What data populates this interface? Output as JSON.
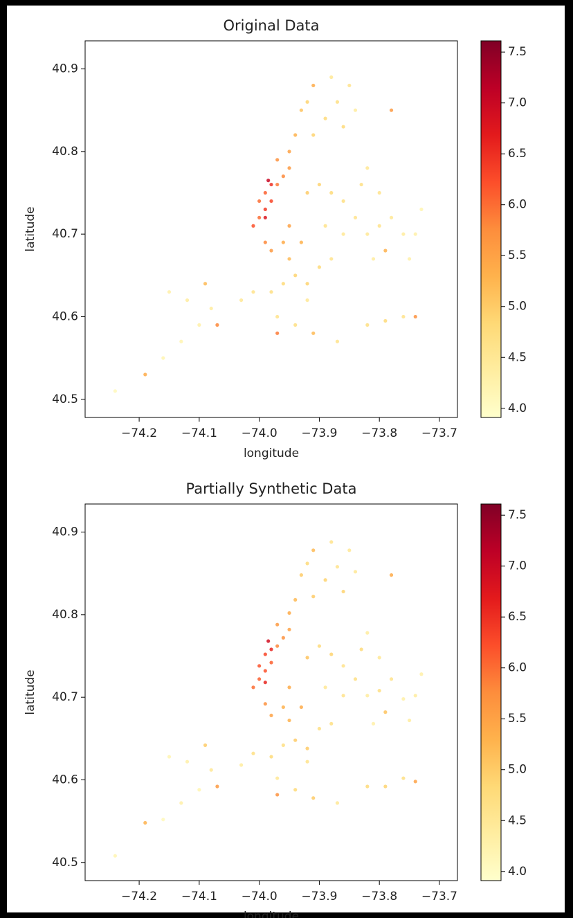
{
  "chart_data": [
    {
      "type": "scatter",
      "title": "Original Data",
      "xlabel": "longitude",
      "ylabel": "latitude",
      "xlim": [
        -74.29,
        -73.67
      ],
      "ylim": [
        40.478,
        40.934
      ],
      "xticks": [
        {
          "value": -74.2,
          "label": "−74.2"
        },
        {
          "value": -74.1,
          "label": "−74.1"
        },
        {
          "value": -74.0,
          "label": "−74.0"
        },
        {
          "value": -73.9,
          "label": "−73.9"
        },
        {
          "value": -73.8,
          "label": "−73.8"
        },
        {
          "value": -73.7,
          "label": "−73.7"
        }
      ],
      "yticks": [
        40.5,
        40.6,
        40.7,
        40.8,
        40.9
      ],
      "colormap": "YlOrRd",
      "clim": [
        3.91,
        7.61
      ],
      "cticks": [
        {
          "value": 4,
          "label": "4.0"
        },
        4.5,
        {
          "value": 5,
          "label": "5.0"
        },
        5.5,
        {
          "value": 6,
          "label": "6.0"
        },
        6.5,
        {
          "value": 7,
          "label": "7.0"
        },
        7.5
      ],
      "series": [
        {
          "x": [
            -74.01,
            -74.0,
            -73.99,
            -73.99,
            -73.98,
            -73.97,
            -73.98,
            -73.96,
            -73.95,
            -73.97,
            -73.95,
            -73.94,
            -73.93,
            -73.92,
            -74.0,
            -73.99,
            -73.985,
            -73.99,
            -73.98,
            -73.96,
            -73.95,
            -73.94,
            -73.96,
            -73.98,
            -74.01,
            -74.03,
            -73.92,
            -73.9,
            -73.93,
            -73.95,
            -73.97,
            -73.94,
            -73.92,
            -73.88,
            -73.97,
            -73.91,
            -73.92,
            -73.9,
            -73.88,
            -73.86,
            -73.84,
            -73.82,
            -73.8,
            -73.78,
            -73.76,
            -73.74,
            -73.8,
            -73.83,
            -73.86,
            -73.89,
            -73.79,
            -73.81,
            -73.75,
            -73.73,
            -73.82,
            -73.91,
            -73.89,
            -73.87,
            -73.85,
            -73.88,
            -73.91,
            -73.86,
            -73.84,
            -73.78,
            -74.15,
            -74.12,
            -74.09,
            -74.08,
            -74.1,
            -74.13,
            -74.16,
            -74.19,
            -74.24,
            -74.07,
            -73.82,
            -73.79,
            -73.76,
            -73.74,
            -73.87
          ],
          "y": [
            40.71,
            40.72,
            40.73,
            40.75,
            40.76,
            40.76,
            40.74,
            40.77,
            40.78,
            40.79,
            40.8,
            40.82,
            40.85,
            40.86,
            40.74,
            40.72,
            40.765,
            40.69,
            40.68,
            40.69,
            40.67,
            40.65,
            40.64,
            40.63,
            40.63,
            40.62,
            40.64,
            40.66,
            40.69,
            40.71,
            40.6,
            40.59,
            40.62,
            40.67,
            40.58,
            40.58,
            40.75,
            40.76,
            40.75,
            40.74,
            40.72,
            40.7,
            40.71,
            40.72,
            40.7,
            40.7,
            40.75,
            40.76,
            40.7,
            40.71,
            40.68,
            40.67,
            40.67,
            40.73,
            40.78,
            40.82,
            40.84,
            40.86,
            40.88,
            40.89,
            40.88,
            40.83,
            40.85,
            40.85,
            40.63,
            40.62,
            40.64,
            40.61,
            40.59,
            40.57,
            40.55,
            40.53,
            40.51,
            40.59,
            40.59,
            40.595,
            40.6,
            40.6,
            40.57
          ],
          "values": [
            6.2,
            6.0,
            6.4,
            6.1,
            6.5,
            5.9,
            6.3,
            5.8,
            5.6,
            5.7,
            5.5,
            5.3,
            5.1,
            4.9,
            6.0,
            6.8,
            7.0,
            5.8,
            5.6,
            5.4,
            5.2,
            4.9,
            4.8,
            4.7,
            4.6,
            4.5,
            4.9,
            4.8,
            5.3,
            5.5,
            4.6,
            4.7,
            4.5,
            4.6,
            5.9,
            5.2,
            5.0,
            4.9,
            4.8,
            4.7,
            4.6,
            4.5,
            4.6,
            4.5,
            4.4,
            4.3,
            4.6,
            4.7,
            4.5,
            4.6,
            5.3,
            4.4,
            4.3,
            4.2,
            4.5,
            4.9,
            4.8,
            4.7,
            4.6,
            4.5,
            5.4,
            4.8,
            4.4,
            5.6,
            4.3,
            4.4,
            5.2,
            4.4,
            4.3,
            4.2,
            4.2,
            5.4,
            4.1,
            5.8,
            4.7,
            4.8,
            4.6,
            5.7,
            4.6
          ]
        }
      ]
    },
    {
      "type": "scatter",
      "title": "Partially Synthetic Data",
      "xlabel": "longitude",
      "ylabel": "latitude",
      "xlim": [
        -74.29,
        -73.67
      ],
      "ylim": [
        40.478,
        40.934
      ],
      "xticks": [
        {
          "value": -74.2,
          "label": "−74.2"
        },
        {
          "value": -74.1,
          "label": "−74.1"
        },
        {
          "value": -74.0,
          "label": "−74.0"
        },
        {
          "value": -73.9,
          "label": "−73.9"
        },
        {
          "value": -73.8,
          "label": "−73.8"
        },
        {
          "value": -73.7,
          "label": "−73.7"
        }
      ],
      "yticks": [
        40.5,
        40.6,
        40.7,
        40.8,
        40.9
      ],
      "colormap": "YlOrRd",
      "clim": [
        3.91,
        7.61
      ],
      "cticks": [
        {
          "value": 4,
          "label": "4.0"
        },
        4.5,
        {
          "value": 5,
          "label": "5.0"
        },
        5.5,
        {
          "value": 6,
          "label": "6.0"
        },
        6.5,
        {
          "value": 7,
          "label": "7.0"
        },
        7.5
      ],
      "series": [
        {
          "x": [
            -74.01,
            -74.0,
            -73.99,
            -73.99,
            -73.98,
            -73.97,
            -73.98,
            -73.96,
            -73.95,
            -73.97,
            -73.95,
            -73.94,
            -73.93,
            -73.92,
            -74.0,
            -73.99,
            -73.985,
            -73.99,
            -73.98,
            -73.96,
            -73.95,
            -73.94,
            -73.96,
            -73.98,
            -74.01,
            -74.03,
            -73.92,
            -73.9,
            -73.93,
            -73.95,
            -73.97,
            -73.94,
            -73.92,
            -73.88,
            -73.97,
            -73.91,
            -73.92,
            -73.9,
            -73.88,
            -73.86,
            -73.84,
            -73.82,
            -73.8,
            -73.78,
            -73.76,
            -73.74,
            -73.8,
            -73.83,
            -73.86,
            -73.89,
            -73.79,
            -73.81,
            -73.75,
            -73.73,
            -73.82,
            -73.91,
            -73.89,
            -73.87,
            -73.85,
            -73.88,
            -73.91,
            -73.86,
            -73.84,
            -73.78,
            -74.15,
            -74.12,
            -74.09,
            -74.08,
            -74.1,
            -74.13,
            -74.16,
            -74.19,
            -74.24,
            -74.07,
            -73.82,
            -73.79,
            -73.76,
            -73.74,
            -73.87
          ],
          "y": [
            40.712,
            40.722,
            40.732,
            40.752,
            40.758,
            40.762,
            40.742,
            40.772,
            40.782,
            40.788,
            40.802,
            40.818,
            40.848,
            40.862,
            40.738,
            40.718,
            40.768,
            40.692,
            40.678,
            40.688,
            40.672,
            40.648,
            40.642,
            40.628,
            40.632,
            40.618,
            40.638,
            40.662,
            40.688,
            40.712,
            40.602,
            40.588,
            40.622,
            40.668,
            40.582,
            40.578,
            40.748,
            40.762,
            40.752,
            40.738,
            40.722,
            40.702,
            40.708,
            40.722,
            40.698,
            40.702,
            40.748,
            40.758,
            40.702,
            40.712,
            40.682,
            40.668,
            40.672,
            40.728,
            40.778,
            40.822,
            40.842,
            40.858,
            40.878,
            40.888,
            40.878,
            40.828,
            40.852,
            40.848,
            40.628,
            40.622,
            40.642,
            40.612,
            40.588,
            40.572,
            40.552,
            40.548,
            40.508,
            40.592,
            40.592,
            40.592,
            40.602,
            40.598,
            40.572
          ],
          "values": [
            6.0,
            6.1,
            6.2,
            6.3,
            6.6,
            5.8,
            6.1,
            5.7,
            5.5,
            5.6,
            5.4,
            5.2,
            5.0,
            4.8,
            6.2,
            6.6,
            6.9,
            5.7,
            5.5,
            5.3,
            5.3,
            5.0,
            4.7,
            4.8,
            4.7,
            4.4,
            5.0,
            4.7,
            5.4,
            5.4,
            4.5,
            4.8,
            4.6,
            4.7,
            5.7,
            5.0,
            5.1,
            4.8,
            4.9,
            4.6,
            4.7,
            4.4,
            4.7,
            4.6,
            4.3,
            4.4,
            4.5,
            4.8,
            4.6,
            4.5,
            5.1,
            4.3,
            4.4,
            4.3,
            4.4,
            5.0,
            4.9,
            4.6,
            4.5,
            4.6,
            5.2,
            4.9,
            4.5,
            5.4,
            4.2,
            4.3,
            5.0,
            4.5,
            4.2,
            4.3,
            4.1,
            5.3,
            4.2,
            5.6,
            4.8,
            4.9,
            4.7,
            5.5,
            4.5
          ]
        }
      ]
    }
  ]
}
